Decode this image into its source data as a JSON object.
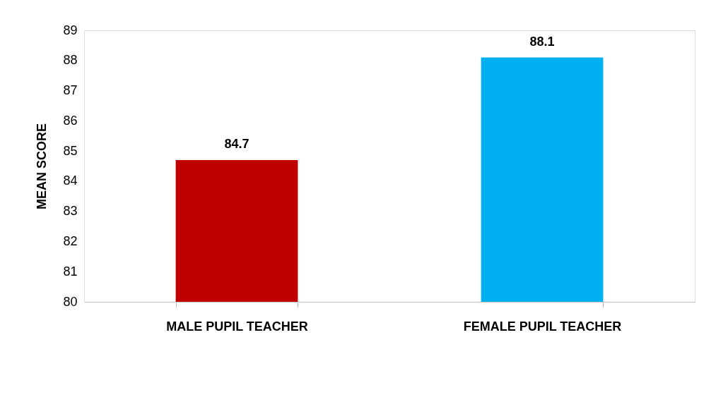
{
  "chart_data": {
    "type": "bar",
    "ylabel": "MEAN SCORE",
    "categories": [
      "MALE PUPIL TEACHER",
      "FEMALE PUPIL TEACHER"
    ],
    "values": [
      84.7,
      88.1
    ],
    "colors": [
      "#c00000",
      "#00b0f0"
    ],
    "ylim": [
      80,
      89
    ],
    "yticks": [
      80,
      81,
      82,
      83,
      84,
      85,
      86,
      87,
      88,
      89
    ],
    "data_labels": true,
    "grid": false
  }
}
